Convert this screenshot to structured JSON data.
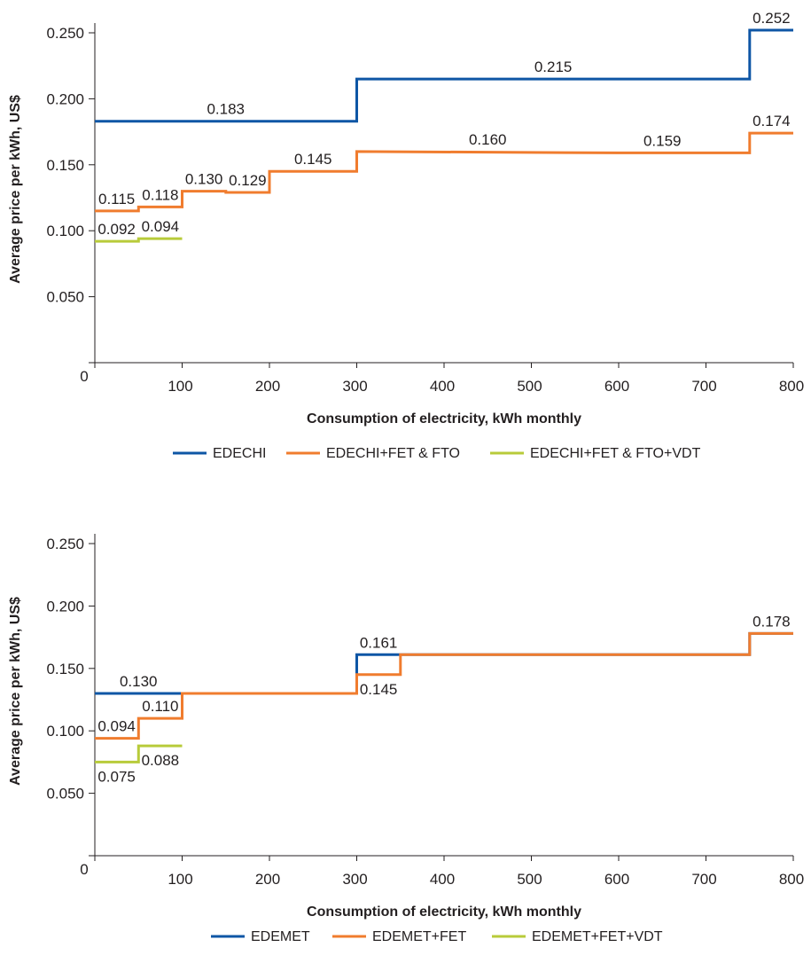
{
  "chart_data": [
    {
      "type": "line",
      "step": true,
      "xlabel": "Consumption of electricity, kWh monthly",
      "ylabel": "Average price per kWh, US$",
      "xlim": [
        0,
        800
      ],
      "ylim": [
        0,
        0.25
      ],
      "x_ticks": [
        "0",
        "100",
        "200",
        "300",
        "400",
        "500",
        "600",
        "700",
        "800"
      ],
      "y_ticks": [
        "0.050",
        "0.100",
        "0.150",
        "0.200",
        "0.250"
      ],
      "legend_position": "bottom",
      "grid": false,
      "series": [
        {
          "name": "EDECHI",
          "color": "#0e56a5",
          "points": [
            [
              0,
              0.183
            ],
            [
              300,
              0.183
            ],
            [
              300,
              0.215
            ],
            [
              750,
              0.215
            ],
            [
              750,
              0.252
            ],
            [
              800,
              0.252
            ]
          ]
        },
        {
          "name": "EDECHI+FET & FTO",
          "color": "#f07c2e",
          "points": [
            [
              0,
              0.115
            ],
            [
              50,
              0.115
            ],
            [
              50,
              0.118
            ],
            [
              100,
              0.118
            ],
            [
              100,
              0.13
            ],
            [
              150,
              0.13
            ],
            [
              150,
              0.129
            ],
            [
              200,
              0.129
            ],
            [
              200,
              0.145
            ],
            [
              300,
              0.145
            ],
            [
              300,
              0.16
            ],
            [
              600,
              0.159
            ],
            [
              750,
              0.159
            ],
            [
              750,
              0.174
            ],
            [
              800,
              0.174
            ]
          ]
        },
        {
          "name": "EDECHI+FET & FTO+VDT",
          "color": "#b8cb3a",
          "points": [
            [
              0,
              0.092
            ],
            [
              50,
              0.092
            ],
            [
              50,
              0.094
            ],
            [
              100,
              0.094
            ]
          ]
        }
      ],
      "data_labels": [
        {
          "text": "0.252",
          "x": 775,
          "y": 0.252,
          "pos": "above"
        },
        {
          "text": "0.215",
          "x": 525,
          "y": 0.215,
          "pos": "above"
        },
        {
          "text": "0.183",
          "x": 150,
          "y": 0.183,
          "pos": "above"
        },
        {
          "text": "0.174",
          "x": 775,
          "y": 0.174,
          "pos": "above"
        },
        {
          "text": "0.160",
          "x": 450,
          "y": 0.16,
          "pos": "above"
        },
        {
          "text": "0.159",
          "x": 650,
          "y": 0.159,
          "pos": "above"
        },
        {
          "text": "0.145",
          "x": 250,
          "y": 0.145,
          "pos": "above"
        },
        {
          "text": "0.130",
          "x": 125,
          "y": 0.13,
          "pos": "above"
        },
        {
          "text": "0.129",
          "x": 175,
          "y": 0.129,
          "pos": "above"
        },
        {
          "text": "0.115",
          "x": 25,
          "y": 0.115,
          "pos": "above"
        },
        {
          "text": "0.118",
          "x": 75,
          "y": 0.118,
          "pos": "above"
        },
        {
          "text": "0.092",
          "x": 25,
          "y": 0.092,
          "pos": "above"
        },
        {
          "text": "0.094",
          "x": 75,
          "y": 0.094,
          "pos": "above"
        }
      ]
    },
    {
      "type": "line",
      "step": true,
      "xlabel": "Consumption of electricity, kWh monthly",
      "ylabel": "Average price per kWh, US$",
      "xlim": [
        0,
        800
      ],
      "ylim": [
        0,
        0.25
      ],
      "x_ticks": [
        "0",
        "100",
        "200",
        "300",
        "400",
        "500",
        "600",
        "700",
        "800"
      ],
      "y_ticks": [
        "0.050",
        "0.100",
        "0.150",
        "0.200",
        "0.250"
      ],
      "legend_position": "bottom",
      "grid": false,
      "series": [
        {
          "name": "EDEMET",
          "color": "#0e56a5",
          "points": [
            [
              0,
              0.13
            ],
            [
              100,
              0.13
            ],
            [
              100,
              0.13
            ],
            [
              300,
              0.13
            ],
            [
              300,
              0.161
            ],
            [
              350,
              0.161
            ],
            [
              750,
              0.161
            ],
            [
              750,
              0.178
            ],
            [
              800,
              0.178
            ]
          ]
        },
        {
          "name": "EDEMET+FET",
          "color": "#f07c2e",
          "points": [
            [
              0,
              0.094
            ],
            [
              50,
              0.094
            ],
            [
              50,
              0.11
            ],
            [
              100,
              0.11
            ],
            [
              100,
              0.13
            ],
            [
              300,
              0.13
            ],
            [
              300,
              0.145
            ],
            [
              350,
              0.145
            ],
            [
              350,
              0.161
            ],
            [
              750,
              0.161
            ],
            [
              750,
              0.178
            ],
            [
              800,
              0.178
            ]
          ]
        },
        {
          "name": "EDEMET+FET+VDT",
          "color": "#b8cb3a",
          "points": [
            [
              0,
              0.075
            ],
            [
              50,
              0.075
            ],
            [
              50,
              0.088
            ],
            [
              100,
              0.088
            ]
          ]
        }
      ],
      "data_labels": [
        {
          "text": "0.178",
          "x": 775,
          "y": 0.178,
          "pos": "above"
        },
        {
          "text": "0.161",
          "x": 325,
          "y": 0.161,
          "pos": "above"
        },
        {
          "text": "0.145",
          "x": 325,
          "y": 0.145,
          "pos": "below"
        },
        {
          "text": "0.130",
          "x": 50,
          "y": 0.13,
          "pos": "above"
        },
        {
          "text": "0.110",
          "x": 75,
          "y": 0.11,
          "pos": "above"
        },
        {
          "text": "0.094",
          "x": 25,
          "y": 0.094,
          "pos": "above"
        },
        {
          "text": "0.088",
          "x": 75,
          "y": 0.088,
          "pos": "below"
        },
        {
          "text": "0.075",
          "x": 25,
          "y": 0.075,
          "pos": "below"
        }
      ]
    }
  ]
}
